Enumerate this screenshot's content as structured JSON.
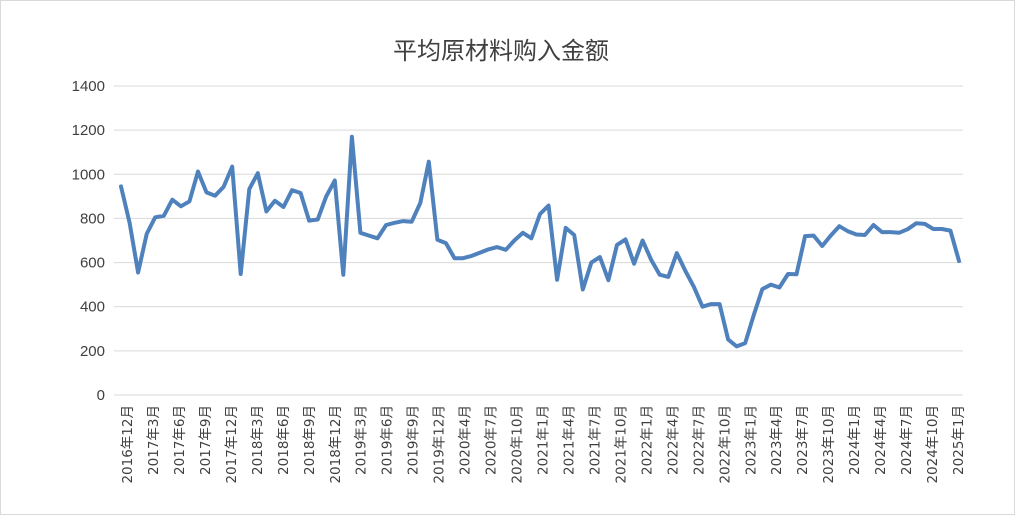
{
  "chart_data": {
    "type": "line",
    "title": "平均原材料购入金额",
    "xlabel": "",
    "ylabel": "",
    "ylim": [
      0,
      1400
    ],
    "yticks": [
      0,
      200,
      400,
      600,
      800,
      1000,
      1200,
      1400
    ],
    "grid": true,
    "legend": "none",
    "line_color": "#4f81bd",
    "x_tick_labels": [
      "2016年12月",
      "2017年3月",
      "2017年6月",
      "2017年9月",
      "2017年12月",
      "2018年3月",
      "2018年6月",
      "2018年9月",
      "2018年12月",
      "2019年3月",
      "2019年6月",
      "2019年9月",
      "2019年12月",
      "2020年4月",
      "2020年7月",
      "2020年10月",
      "2021年1月",
      "2021年4月",
      "2021年7月",
      "2021年10月",
      "2022年1月",
      "2022年4月",
      "2022年7月",
      "2022年10月",
      "2023年1月",
      "2023年4月",
      "2023年7月",
      "2023年10月",
      "2024年1月",
      "2024年4月",
      "2024年7月",
      "2024年10月",
      "2025年1月"
    ],
    "series": [
      {
        "values": [
          945,
          780,
          555,
          730,
          805,
          812,
          885,
          855,
          877,
          1012,
          918,
          903,
          943,
          1035,
          548,
          933,
          1005,
          832,
          880,
          852,
          928,
          915,
          790,
          795,
          900,
          972,
          545,
          1170,
          735,
          722,
          710,
          770,
          780,
          788,
          785,
          870,
          1057,
          703,
          688,
          620,
          620,
          630,
          645,
          660,
          670,
          658,
          700,
          735,
          710,
          820,
          858,
          522,
          757,
          725,
          478,
          600,
          625,
          520,
          680,
          705,
          595,
          700,
          612,
          545,
          535,
          643,
          562,
          490,
          400,
          412,
          412,
          252,
          220,
          235,
          363,
          480,
          500,
          487,
          548,
          547,
          720,
          722,
          675,
          722,
          765,
          742,
          727,
          725,
          770,
          738,
          738,
          735,
          751,
          778,
          775,
          752,
          752,
          745,
          607
        ]
      }
    ]
  }
}
